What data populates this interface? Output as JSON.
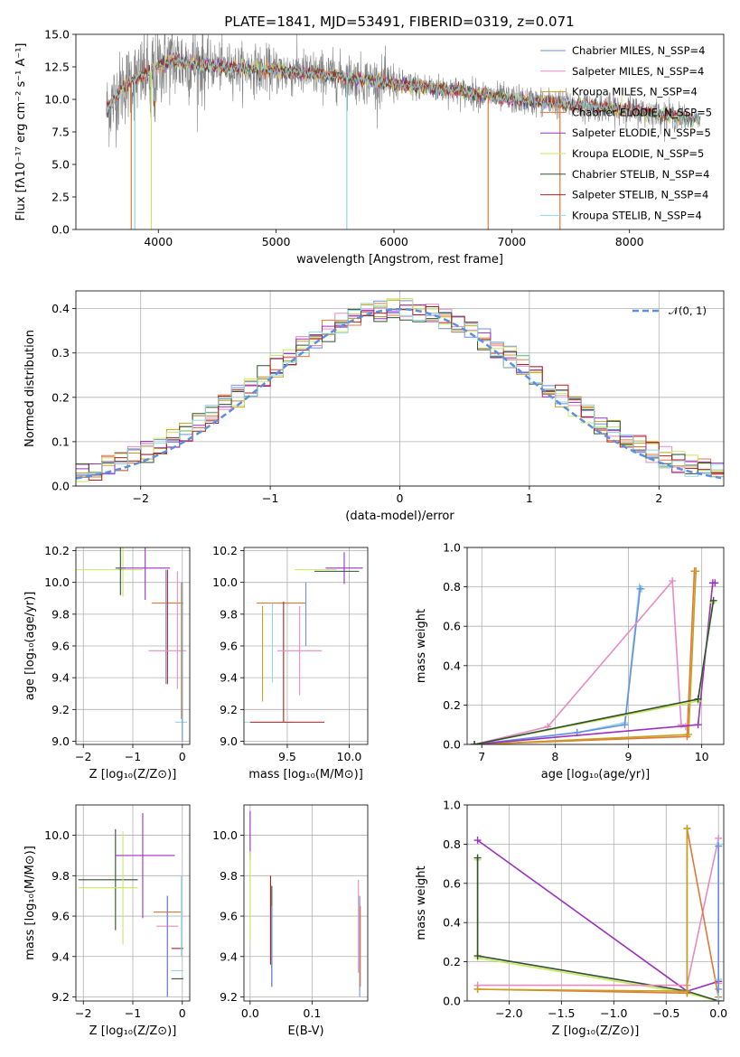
{
  "figure": {
    "title": "PLATE=1841, MJD=53491, FIBERID=0319, z=0.071"
  },
  "colors": {
    "obs": "#808080",
    "models": [
      "#6b8ee6",
      "#e88ac2",
      "#c8a020",
      "#e07838",
      "#9b30c0",
      "#c8e860",
      "#305030",
      "#b02020",
      "#90d8e0"
    ]
  },
  "chart_data": [
    {
      "id": "spectrum",
      "type": "line",
      "xlabel": "wavelength [Angstrom, rest frame]",
      "ylabel": "Flux [fλ10⁻¹⁷ erg cm⁻² s⁻¹ A⁻¹]",
      "xlim": [
        3300,
        8800
      ],
      "ylim": [
        0,
        15
      ],
      "xticks": [
        4000,
        5000,
        6000,
        7000,
        8000
      ],
      "yticks": [
        0.0,
        2.5,
        5.0,
        7.5,
        10.0,
        12.5,
        15.0
      ],
      "legend": "top-right",
      "grid": false,
      "series": [
        {
          "name": "Chabrier MILES, N_SSP=4"
        },
        {
          "name": "Salpeter MILES, N_SSP=4"
        },
        {
          "name": "Kroupa MILES, N_SSP=4"
        },
        {
          "name": "Chabrier ELODIE, N_SSP=5"
        },
        {
          "name": "Salpeter ELODIE, N_SSP=5"
        },
        {
          "name": "Kroupa ELODIE, N_SSP=5"
        },
        {
          "name": "Chabrier STELIB, N_SSP=4"
        },
        {
          "name": "Salpeter STELIB, N_SSP=4"
        },
        {
          "name": "Kroupa STELIB, N_SSP=4"
        }
      ],
      "continuum": [
        [
          3550,
          9.0
        ],
        [
          3700,
          11.0
        ],
        [
          3900,
          12.0
        ],
        [
          4100,
          13.0
        ],
        [
          4400,
          12.6
        ],
        [
          5000,
          12.2
        ],
        [
          5500,
          11.8
        ],
        [
          6000,
          11.2
        ],
        [
          6500,
          10.7
        ],
        [
          7000,
          10.0
        ],
        [
          7500,
          9.6
        ],
        [
          8000,
          9.2
        ],
        [
          8600,
          8.4
        ]
      ]
    },
    {
      "id": "residuals",
      "type": "line",
      "xlabel": "(data-model)/error",
      "ylabel": "Normed distribution",
      "xlim": [
        -2.5,
        2.5
      ],
      "ylim": [
        0,
        0.44
      ],
      "xticks": [
        -2,
        -1,
        0,
        1,
        2
      ],
      "yticks": [
        0.0,
        0.1,
        0.2,
        0.3,
        0.4
      ],
      "grid": true,
      "legend": "top-right",
      "reference": {
        "name": "𝒩(0, 1)",
        "mu": 0,
        "sigma": 1
      }
    },
    {
      "id": "age-vs-Z",
      "type": "scatter",
      "xlabel": "Z [log₁₀(Z/Z⊙)]",
      "ylabel": "age  [log₁₀(age/yr)]",
      "xlim": [
        -2.15,
        0.15
      ],
      "ylim": [
        8.98,
        10.22
      ],
      "xticks": [
        -2,
        -1,
        0
      ],
      "yticks": [
        9.0,
        9.2,
        9.4,
        9.6,
        9.8,
        10.0,
        10.2
      ],
      "grid": true,
      "points": [
        {
          "x": -1.75,
          "y": 10.08,
          "xerr": 0.95,
          "yerr": 0,
          "c": 5
        },
        {
          "x": -1.25,
          "y": 10.09,
          "xerr": 0.1,
          "yerr": 0.17,
          "c": 6
        },
        {
          "x": -1.2,
          "y": 10.08,
          "xerr": 0,
          "yerr": 0.17,
          "c": 5
        },
        {
          "x": -0.75,
          "y": 10.09,
          "xerr": 0.5,
          "yerr": 0.2,
          "c": 4
        },
        {
          "x": -0.3,
          "y": 9.87,
          "xerr": 0.32,
          "yerr": 0,
          "c": 3
        },
        {
          "x": -0.3,
          "y": 9.72,
          "xerr": 0,
          "yerr": 0.36,
          "c": 7
        },
        {
          "x": -0.33,
          "y": 9.72,
          "xerr": 0,
          "yerr": 0.36,
          "c": 0
        },
        {
          "x": -0.3,
          "y": 9.57,
          "xerr": 0.38,
          "yerr": 0,
          "c": 1
        },
        {
          "x": -0.1,
          "y": 9.7,
          "xerr": 0,
          "yerr": 0.37,
          "c": 1
        },
        {
          "x": -0.02,
          "y": 9.57,
          "xerr": 0,
          "yerr": 0.43,
          "c": 2
        },
        {
          "x": -0.02,
          "y": 9.12,
          "xerr": 0.12,
          "yerr": 0,
          "c": 8
        },
        {
          "x": 0.0,
          "y": 9.5,
          "xerr": 0,
          "yerr": 0.5,
          "c": 0
        }
      ]
    },
    {
      "id": "age-vs-mass",
      "type": "scatter",
      "xlabel": "mass [log₁₀(M/M⊙)]",
      "ylabel": "",
      "xlim": [
        9.15,
        10.15
      ],
      "ylim": [
        8.98,
        10.22
      ],
      "xticks": [
        9.5,
        10.0
      ],
      "yticks": [
        9.0,
        9.2,
        9.4,
        9.6,
        9.8,
        10.0,
        10.2
      ],
      "grid": true,
      "points": [
        {
          "x": 9.73,
          "y": 10.08,
          "xerr": 0.17,
          "yerr": 0,
          "c": 5
        },
        {
          "x": 9.96,
          "y": 10.09,
          "xerr": 0.15,
          "yerr": 0.1,
          "c": 4
        },
        {
          "x": 9.9,
          "y": 10.07,
          "xerr": 0.18,
          "yerr": 0,
          "c": 6
        },
        {
          "x": 9.45,
          "y": 9.87,
          "xerr": 0.2,
          "yerr": 0,
          "c": 3
        },
        {
          "x": 9.47,
          "y": 9.5,
          "xerr": 0,
          "yerr": 0.38,
          "c": 7
        },
        {
          "x": 9.38,
          "y": 9.62,
          "xerr": 0,
          "yerr": 0.25,
          "c": 8
        },
        {
          "x": 9.3,
          "y": 9.55,
          "xerr": 0,
          "yerr": 0.3,
          "c": 2
        },
        {
          "x": 9.6,
          "y": 9.57,
          "xerr": 0.18,
          "yerr": 0.28,
          "c": 1
        },
        {
          "x": 9.3,
          "y": 9.12,
          "xerr": 0.25,
          "yerr": 0,
          "c": 8
        },
        {
          "x": 9.5,
          "y": 9.12,
          "xerr": 0.3,
          "yerr": 0,
          "c": 7
        },
        {
          "x": 9.65,
          "y": 9.8,
          "xerr": 0,
          "yerr": 0.2,
          "c": 0
        }
      ]
    },
    {
      "id": "massweight-vs-age",
      "type": "line",
      "xlabel": "age  [log₁₀(age/yr)]",
      "ylabel": "mass weight",
      "xlim": [
        6.8,
        10.3
      ],
      "ylim": [
        0,
        1
      ],
      "xticks": [
        7,
        8,
        9,
        10
      ],
      "yticks": [
        0.0,
        0.2,
        0.4,
        0.6,
        0.8,
        1.0
      ],
      "grid": true,
      "series": [
        {
          "c": 8,
          "x": [
            6.9,
            8.3,
            8.95,
            9.15,
            9.18
          ],
          "y": [
            0.0,
            0.06,
            0.11,
            0.8,
            0.79
          ]
        },
        {
          "c": 0,
          "x": [
            6.9,
            8.3,
            8.95,
            9.16
          ],
          "y": [
            0.0,
            0.06,
            0.1,
            0.79
          ]
        },
        {
          "c": 1,
          "x": [
            6.9,
            7.9,
            9.6,
            9.72,
            9.78
          ],
          "y": [
            0.0,
            0.09,
            0.83,
            0.1,
            0.09
          ]
        },
        {
          "c": 3,
          "x": [
            6.9,
            9.8,
            9.9,
            9.92
          ],
          "y": [
            0.0,
            0.04,
            0.88,
            0.88
          ]
        },
        {
          "c": 2,
          "x": [
            6.9,
            9.82,
            9.92
          ],
          "y": [
            0.0,
            0.05,
            0.88
          ]
        },
        {
          "c": 4,
          "x": [
            6.9,
            9.95,
            10.15,
            10.18
          ],
          "y": [
            0.0,
            0.1,
            0.82,
            0.82
          ]
        },
        {
          "c": 5,
          "x": [
            6.9,
            9.95,
            10.15
          ],
          "y": [
            0.0,
            0.22,
            0.72
          ]
        },
        {
          "c": 6,
          "x": [
            6.9,
            9.95,
            10.16
          ],
          "y": [
            0.0,
            0.23,
            0.73
          ]
        }
      ]
    },
    {
      "id": "mass-vs-Z",
      "type": "scatter",
      "xlabel": "Z [log₁₀(Z/Z⊙)]",
      "ylabel": "mass [log₁₀(M/M⊙)]",
      "xlim": [
        -2.15,
        0.15
      ],
      "ylim": [
        9.18,
        10.15
      ],
      "xticks": [
        -2,
        -1,
        0
      ],
      "yticks": [
        9.2,
        9.4,
        9.6,
        9.8,
        10.0
      ],
      "grid": true,
      "points": [
        {
          "x": -1.5,
          "y": 9.78,
          "xerr": 0.6,
          "yerr": 0,
          "c": 6
        },
        {
          "x": -1.35,
          "y": 9.78,
          "xerr": 0,
          "yerr": 0.25,
          "c": 6
        },
        {
          "x": -1.5,
          "y": 9.74,
          "xerr": 0.6,
          "yerr": 0,
          "c": 5
        },
        {
          "x": -1.2,
          "y": 9.74,
          "xerr": 0,
          "yerr": 0.28,
          "c": 5
        },
        {
          "x": -0.75,
          "y": 9.9,
          "xerr": 0.6,
          "yerr": 0,
          "c": 4
        },
        {
          "x": -0.8,
          "y": 9.85,
          "xerr": 0,
          "yerr": 0.26,
          "c": 4
        },
        {
          "x": -0.3,
          "y": 9.62,
          "xerr": 0.28,
          "yerr": 0,
          "c": 3
        },
        {
          "x": -0.3,
          "y": 9.45,
          "xerr": 0,
          "yerr": 0.25,
          "c": 7
        },
        {
          "x": -0.3,
          "y": 9.55,
          "xerr": 0.22,
          "yerr": 0,
          "c": 1
        },
        {
          "x": -0.3,
          "y": 9.45,
          "xerr": 0,
          "yerr": 0.25,
          "c": 0
        },
        {
          "x": -0.1,
          "y": 9.44,
          "xerr": 0.12,
          "yerr": 0,
          "c": 7
        },
        {
          "x": -0.1,
          "y": 9.33,
          "xerr": 0.12,
          "yerr": 0,
          "c": 8
        },
        {
          "x": -0.1,
          "y": 9.29,
          "xerr": 0.12,
          "yerr": 0,
          "c": 6
        },
        {
          "x": -0.02,
          "y": 9.6,
          "xerr": 0,
          "yerr": 0.2,
          "c": 8
        }
      ]
    },
    {
      "id": "mass-vs-EBV",
      "type": "scatter",
      "xlabel": "E(B-V)",
      "ylabel": "",
      "xlim": [
        -0.01,
        0.19
      ],
      "ylim": [
        9.18,
        10.15
      ],
      "xticks": [
        0.0,
        0.1
      ],
      "yticks": [
        9.2,
        9.4,
        9.6,
        9.8,
        10.0
      ],
      "grid": true,
      "points": [
        {
          "x": 0.0,
          "y": 10.0,
          "xerr": 0,
          "yerr": 0.12,
          "c": 4
        },
        {
          "x": 0.0,
          "y": 9.7,
          "xerr": 0,
          "yerr": 0.22,
          "c": 5
        },
        {
          "x": 0.033,
          "y": 9.58,
          "xerr": 0,
          "yerr": 0.22,
          "c": 7
        },
        {
          "x": 0.035,
          "y": 9.5,
          "xerr": 0,
          "yerr": 0.25,
          "c": 6
        },
        {
          "x": 0.035,
          "y": 9.45,
          "xerr": 0,
          "yerr": 0.2,
          "c": 0
        },
        {
          "x": 0.175,
          "y": 9.55,
          "xerr": 0,
          "yerr": 0.23,
          "c": 1
        },
        {
          "x": 0.177,
          "y": 9.45,
          "xerr": 0,
          "yerr": 0.25,
          "c": 0
        },
        {
          "x": 0.178,
          "y": 9.45,
          "xerr": 0,
          "yerr": 0.2,
          "c": 3
        }
      ]
    },
    {
      "id": "massweight-vs-Z",
      "type": "line",
      "xlabel": "Z [log₁₀(Z/Z⊙)]",
      "ylabel": "mass weight",
      "xlim": [
        -2.4,
        0.05
      ],
      "ylim": [
        0,
        1
      ],
      "xticks": [
        -2.0,
        -1.5,
        -1.0,
        -0.5,
        0.0
      ],
      "yticks": [
        0.0,
        0.2,
        0.4,
        0.6,
        0.8,
        1.0
      ],
      "grid": true,
      "series": [
        {
          "c": 4,
          "x": [
            -2.3,
            -0.3,
            0.0
          ],
          "y": [
            0.82,
            0.05,
            0.1
          ]
        },
        {
          "c": 5,
          "x": [
            -2.3,
            -2.3,
            -0.3,
            0.0
          ],
          "y": [
            0.72,
            0.22,
            0.04,
            0.0
          ]
        },
        {
          "c": 6,
          "x": [
            -2.3,
            -2.3,
            -0.3,
            0.0
          ],
          "y": [
            0.73,
            0.23,
            0.05,
            0.0
          ]
        },
        {
          "c": 1,
          "x": [
            -2.3,
            -0.3,
            0.0,
            0.0
          ],
          "y": [
            0.08,
            0.08,
            0.83,
            0.09
          ]
        },
        {
          "c": 3,
          "x": [
            -2.3,
            -0.3,
            -0.3,
            0.0
          ],
          "y": [
            0.06,
            0.04,
            0.88,
            0.02
          ]
        },
        {
          "c": 2,
          "x": [
            -2.3,
            -0.3,
            -0.3
          ],
          "y": [
            0.06,
            0.05,
            0.88
          ]
        },
        {
          "c": 8,
          "x": [
            0.0,
            0.0,
            0.0
          ],
          "y": [
            0.0,
            0.8,
            0.11
          ]
        },
        {
          "c": 0,
          "x": [
            0.0,
            0.0
          ],
          "y": [
            0.06,
            0.79
          ]
        }
      ]
    }
  ]
}
